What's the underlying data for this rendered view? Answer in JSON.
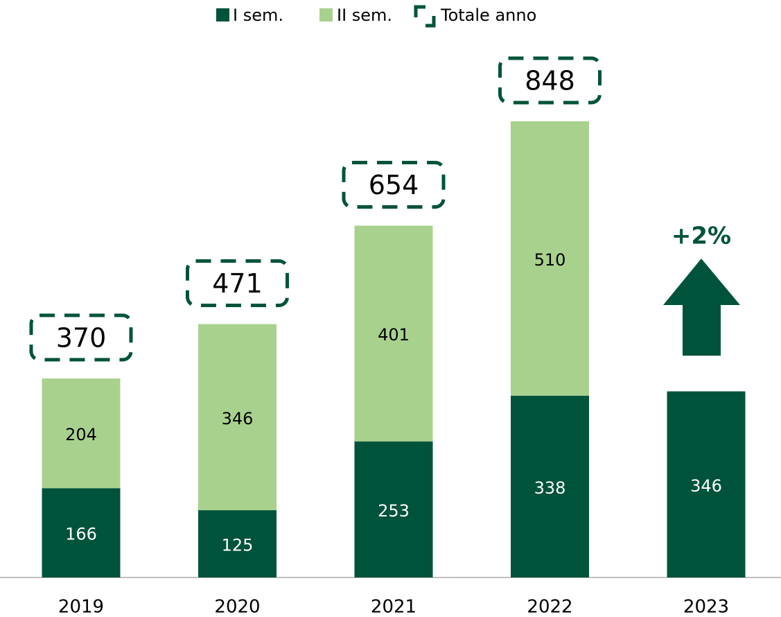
{
  "chart_data": {
    "type": "stacked-bar",
    "categories": [
      "2019",
      "2020",
      "2021",
      "2022",
      "2023"
    ],
    "series": [
      {
        "name": "I sem.",
        "color": "#00533b",
        "label_color": "#ffffff",
        "values": [
          166,
          125,
          253,
          338,
          346
        ]
      },
      {
        "name": "II sem.",
        "color": "#a9d18e",
        "label_color": "#000000",
        "values": [
          204,
          346,
          401,
          510,
          null
        ]
      }
    ],
    "totals_name": "Totale anno",
    "totals": [
      370,
      471,
      654,
      848,
      null
    ],
    "annotation": "+2%"
  }
}
